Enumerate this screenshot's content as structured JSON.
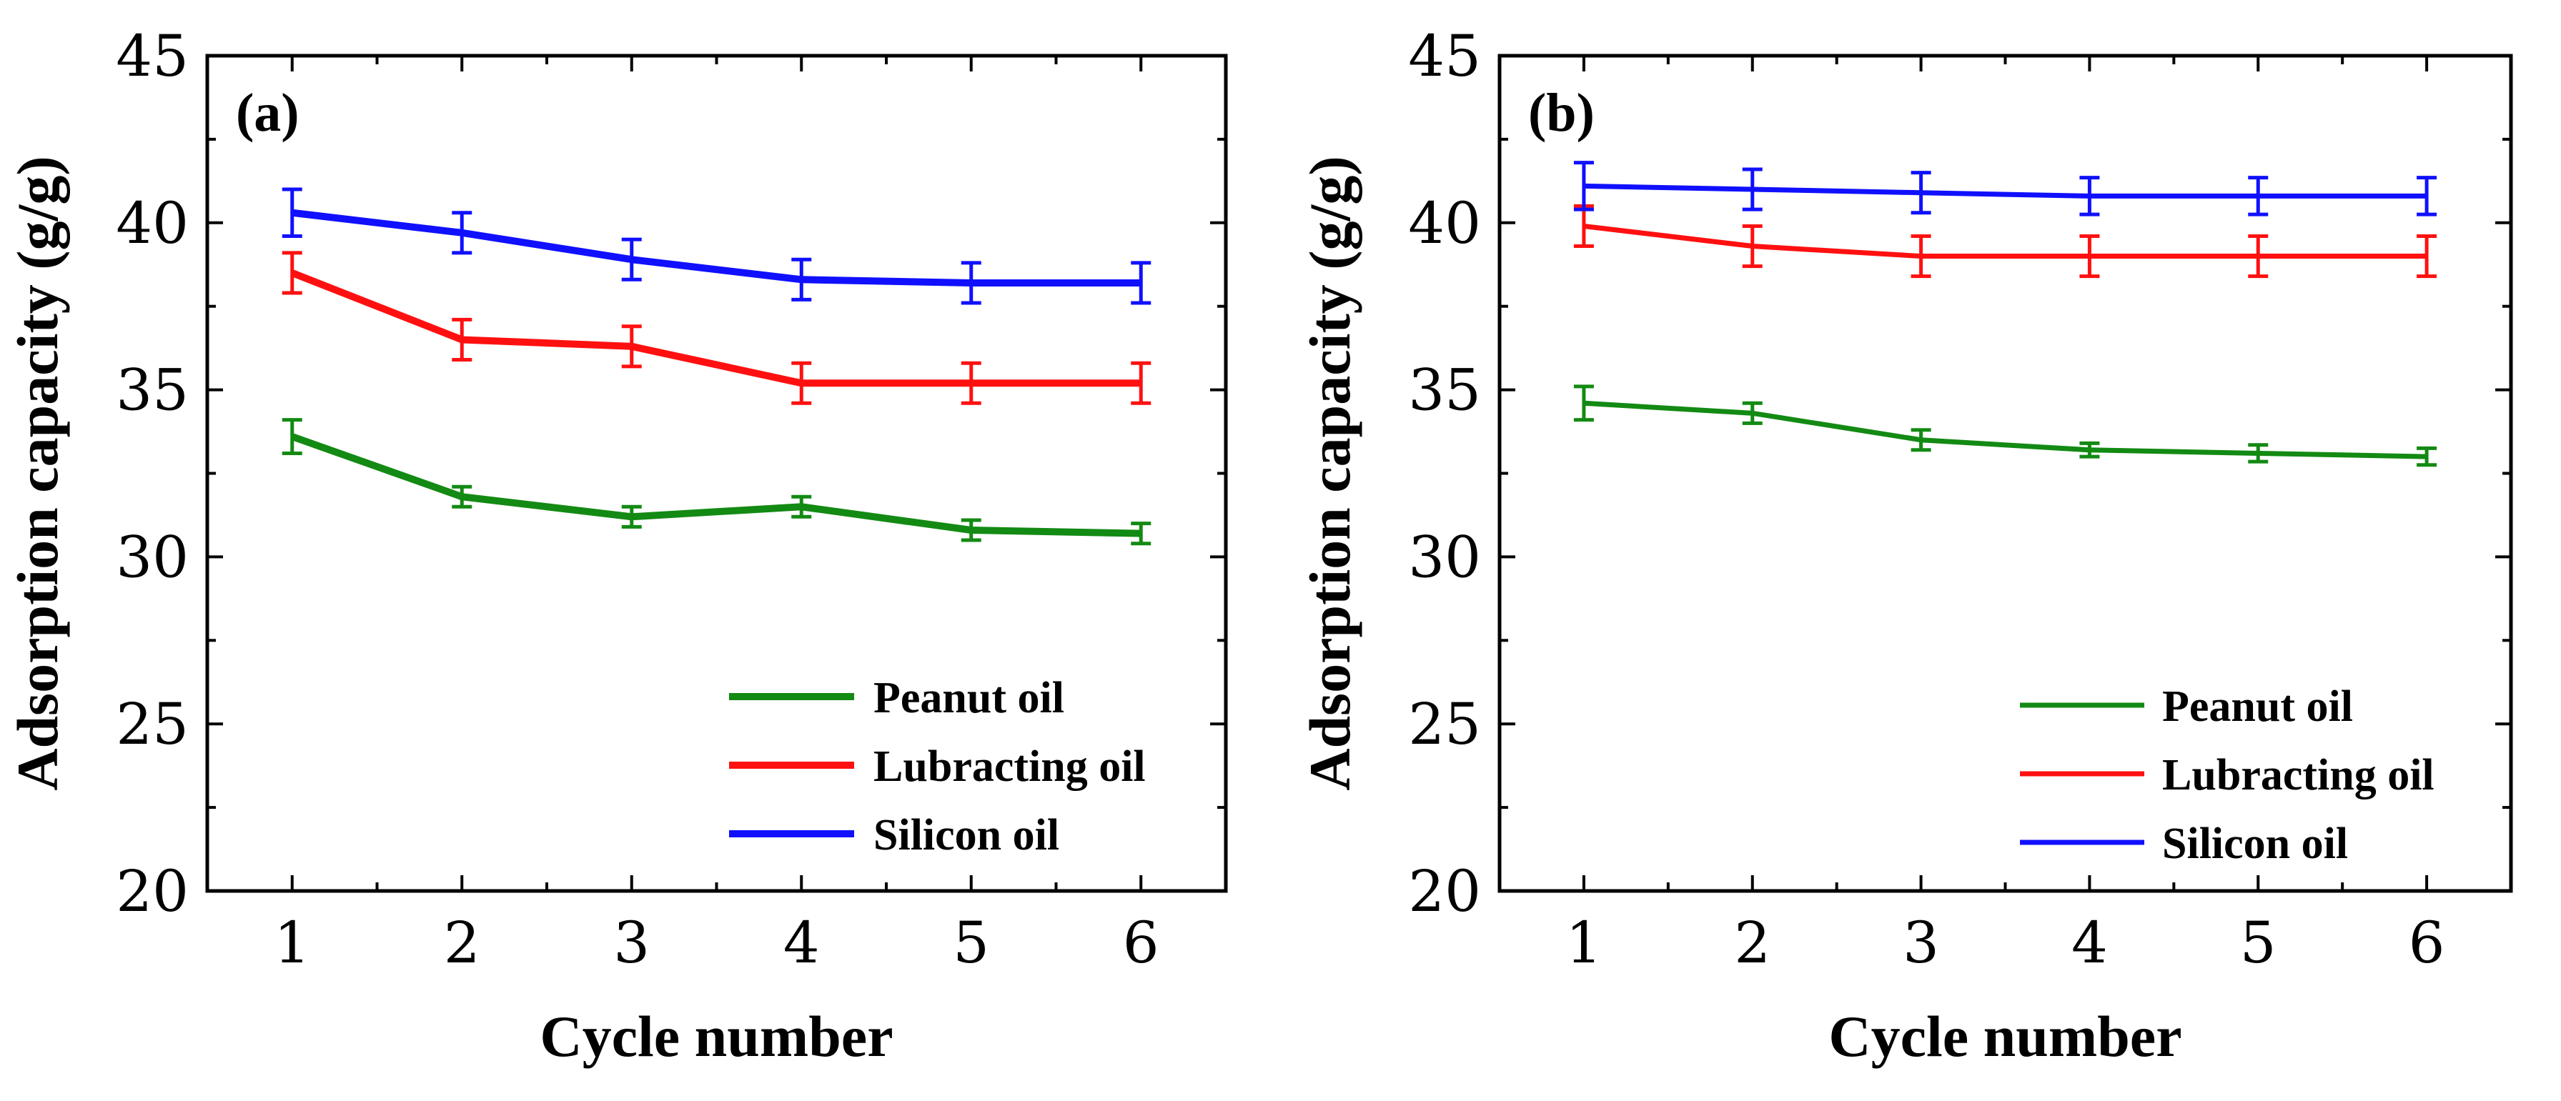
{
  "chart_data": [
    {
      "type": "line",
      "panel_label": "(a)",
      "xlabel": "Cycle number",
      "ylabel": "Adsorption capacity (g/g)",
      "x": [
        1,
        2,
        3,
        4,
        5,
        6
      ],
      "xlim": [
        0.5,
        6.5
      ],
      "ylim": [
        20,
        45
      ],
      "yticks": [
        20,
        25,
        30,
        35,
        40,
        45
      ],
      "series": [
        {
          "name": "Peanut oil",
          "color": "#138a13",
          "values": [
            33.6,
            31.8,
            31.2,
            31.5,
            30.8,
            30.7
          ],
          "errors": [
            0.5,
            0.3,
            0.3,
            0.3,
            0.3,
            0.3
          ]
        },
        {
          "name": "Lubracting oil",
          "color": "#ff1010",
          "values": [
            38.5,
            36.5,
            36.3,
            35.2,
            35.2,
            35.2
          ],
          "errors": [
            0.6,
            0.6,
            0.6,
            0.6,
            0.6,
            0.6
          ]
        },
        {
          "name": "Silicon oil",
          "color": "#1010ff",
          "values": [
            40.3,
            39.7,
            38.9,
            38.3,
            38.2,
            38.2
          ],
          "errors": [
            0.7,
            0.6,
            0.6,
            0.6,
            0.6,
            0.6
          ]
        }
      ],
      "legend_position": "lower-right"
    },
    {
      "type": "line",
      "panel_label": "(b)",
      "xlabel": "Cycle number",
      "ylabel": "Adsorption capacity (g/g)",
      "x": [
        1,
        2,
        3,
        4,
        5,
        6
      ],
      "xlim": [
        0.5,
        6.5
      ],
      "ylim": [
        20,
        45
      ],
      "yticks": [
        20,
        25,
        30,
        35,
        40,
        45
      ],
      "series": [
        {
          "name": "Peanut oil",
          "color": "#138a13",
          "values": [
            34.6,
            34.3,
            33.5,
            33.2,
            33.1,
            33.0
          ],
          "errors": [
            0.5,
            0.3,
            0.3,
            0.2,
            0.25,
            0.25
          ]
        },
        {
          "name": "Lubracting oil",
          "color": "#ff1010",
          "values": [
            39.9,
            39.3,
            39.0,
            39.0,
            39.0,
            39.0
          ],
          "errors": [
            0.6,
            0.6,
            0.6,
            0.6,
            0.6,
            0.6
          ]
        },
        {
          "name": "Silicon oil",
          "color": "#1010ff",
          "values": [
            41.1,
            41.0,
            40.9,
            40.8,
            40.8,
            40.8
          ],
          "errors": [
            0.7,
            0.6,
            0.6,
            0.55,
            0.55,
            0.55
          ]
        }
      ],
      "legend_position": "lower-right"
    }
  ]
}
